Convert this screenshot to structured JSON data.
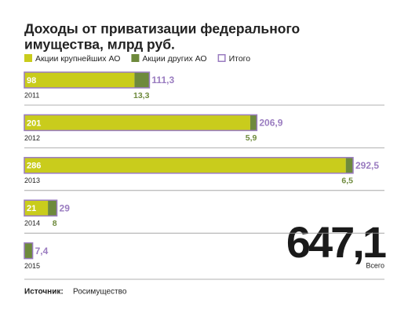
{
  "chart_data": {
    "type": "stacked-barh",
    "title_lines": [
      "Доходы от приватизации федерального",
      "имущества, млрд руб."
    ],
    "categories": [
      "2011",
      "2012",
      "2013",
      "2014",
      "2015"
    ],
    "series": [
      {
        "name": "Акции крупнейших АО",
        "color": "#c9cc1c",
        "values": [
          98,
          201,
          286,
          21,
          null
        ]
      },
      {
        "name": "Акции других АО",
        "color": "#6e8a3c",
        "values": [
          13.3,
          5.9,
          6.5,
          8,
          7.4
        ],
        "value_labels": [
          "13,3",
          "5,9",
          "6,5",
          "8",
          null
        ]
      }
    ],
    "total": {
      "name": "Итого",
      "color": "#9a7cc0",
      "values": [
        111.3,
        206.9,
        292.5,
        29,
        7.4
      ],
      "value_labels": [
        "111,3",
        "206,9",
        "292,5",
        "29",
        "7,4"
      ]
    },
    "grand_total": "647,1",
    "grand_total_caption": "Всего",
    "source_label": "Источник:",
    "source": "Росимущество"
  }
}
